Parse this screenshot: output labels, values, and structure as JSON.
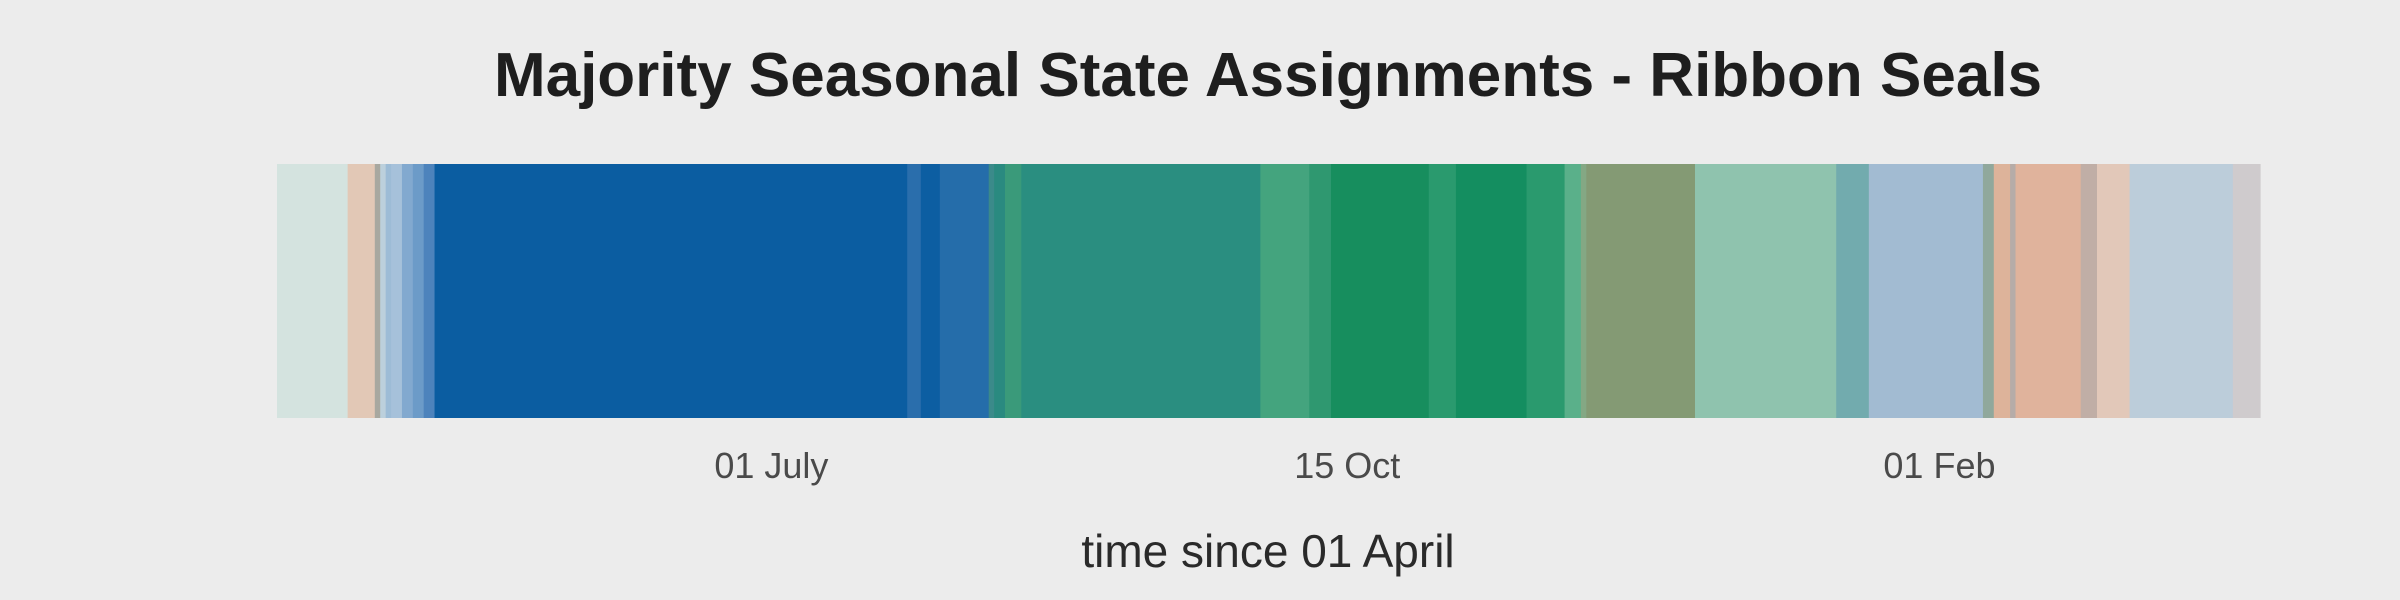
{
  "chart_data": {
    "type": "bar",
    "orientation": "horizontal-timeline",
    "title": "Majority Seasonal State Assignments - Ribbon Seals",
    "xlabel": "time since 01 April",
    "ylabel": "",
    "xlim": [
      0,
      365
    ],
    "grid": false,
    "legend": "none",
    "x_ticks": [
      {
        "label": "01 July",
        "value": 91
      },
      {
        "label": "15 Oct",
        "value": 197
      },
      {
        "label": "01 Feb",
        "value": 306
      }
    ],
    "segments": [
      {
        "start": 0,
        "end": 13,
        "color": "#d4e3df"
      },
      {
        "start": 13,
        "end": 18,
        "color": "#e2c8b6"
      },
      {
        "start": 18,
        "end": 19,
        "color": "#a8a8a0"
      },
      {
        "start": 19,
        "end": 20,
        "color": "#bcd0dc"
      },
      {
        "start": 20,
        "end": 21,
        "color": "#9dbcd6"
      },
      {
        "start": 21,
        "end": 23,
        "color": "#a6c1da"
      },
      {
        "start": 23,
        "end": 25,
        "color": "#82a9cf"
      },
      {
        "start": 25,
        "end": 27,
        "color": "#6c9bc8"
      },
      {
        "start": 27,
        "end": 29,
        "color": "#4d83bc"
      },
      {
        "start": 29,
        "end": 116,
        "color": "#0b5da1"
      },
      {
        "start": 116,
        "end": 118.5,
        "color": "#2a6eac"
      },
      {
        "start": 118.5,
        "end": 122,
        "color": "#0c5ea2"
      },
      {
        "start": 122,
        "end": 131,
        "color": "#256daa"
      },
      {
        "start": 131,
        "end": 132,
        "color": "#3b8a8a"
      },
      {
        "start": 132,
        "end": 134,
        "color": "#2a8a80"
      },
      {
        "start": 134,
        "end": 137,
        "color": "#3a9a7a"
      },
      {
        "start": 137,
        "end": 181,
        "color": "#2a8e80"
      },
      {
        "start": 181,
        "end": 190,
        "color": "#44a47e"
      },
      {
        "start": 190,
        "end": 194,
        "color": "#2f9870"
      },
      {
        "start": 194,
        "end": 212,
        "color": "#178e5e"
      },
      {
        "start": 212,
        "end": 217,
        "color": "#2a9a6e"
      },
      {
        "start": 217,
        "end": 230,
        "color": "#148e60"
      },
      {
        "start": 230,
        "end": 237,
        "color": "#2a9a6e"
      },
      {
        "start": 237,
        "end": 240,
        "color": "#5ab08a"
      },
      {
        "start": 240,
        "end": 241,
        "color": "#84a884"
      },
      {
        "start": 241,
        "end": 261,
        "color": "#849a74"
      },
      {
        "start": 261,
        "end": 287,
        "color": "#8fc3ae"
      },
      {
        "start": 287,
        "end": 293,
        "color": "#72abae"
      },
      {
        "start": 293,
        "end": 314,
        "color": "#a2bbd2"
      },
      {
        "start": 314,
        "end": 316,
        "color": "#90a89c"
      },
      {
        "start": 316,
        "end": 319,
        "color": "#ddb39a"
      },
      {
        "start": 319,
        "end": 320,
        "color": "#b6aca8"
      },
      {
        "start": 320,
        "end": 332,
        "color": "#e0b39c"
      },
      {
        "start": 332,
        "end": 335,
        "color": "#c0aea6"
      },
      {
        "start": 335,
        "end": 341,
        "color": "#e2c8b9"
      },
      {
        "start": 341,
        "end": 360,
        "color": "#bccdda"
      },
      {
        "start": 360,
        "end": 365,
        "color": "#cfcbcd"
      }
    ]
  }
}
